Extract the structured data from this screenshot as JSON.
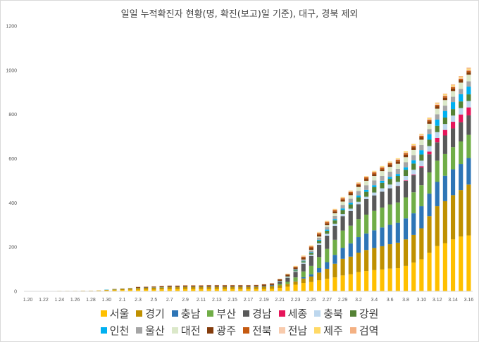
{
  "chart_data": {
    "type": "bar",
    "stacked": true,
    "title": "일일 누적확진자 현황(명, 확진(보고)일 기준), 대구, 경북 제외",
    "xlabel": "",
    "ylabel": "",
    "ylim": [
      0,
      1200
    ],
    "yticks": [
      "0",
      "200",
      "400",
      "600",
      "800",
      "1000",
      "1200"
    ],
    "gridlines": false,
    "legend_position": "bottom",
    "categories": [
      "1.20",
      "1.21",
      "1.22",
      "1.23",
      "1.24",
      "1.25",
      "1.26",
      "1.27",
      "1.28",
      "1.29",
      "1.30",
      "1.31",
      "2.1",
      "2.2",
      "2.3",
      "2.4",
      "2.5",
      "2.6",
      "2.7",
      "2.8",
      "2.9",
      "2.10",
      "2.11",
      "2.12",
      "2.13",
      "2.14",
      "2.15",
      "2.16",
      "2.17",
      "2.18",
      "2.19",
      "2.20",
      "2.21",
      "2.22",
      "2.23",
      "2.24",
      "2.25",
      "2.26",
      "2.27",
      "2.28",
      "2.29",
      "3.1",
      "3.2",
      "3.3",
      "3.4",
      "3.5",
      "3.6",
      "3.7",
      "3.8",
      "3.9",
      "3.10",
      "3.11",
      "3.12",
      "3.13",
      "3.14",
      "3.15",
      "3.16"
    ],
    "xticks_shown": [
      "1.20",
      "1.22",
      "1.24",
      "1.26",
      "1.28",
      "1.30",
      "2.1",
      "2.3",
      "2.5",
      "2.7",
      "2.9",
      "2.11",
      "2.13",
      "2.15",
      "2.17",
      "2.19",
      "2.21",
      "2.23",
      "2.25",
      "2.27",
      "2.29",
      "3.2",
      "3.4",
      "3.6",
      "3.8",
      "3.10",
      "3.12",
      "3.14",
      "3.16"
    ],
    "series": [
      {
        "name": "서울",
        "color": "#ffc000",
        "values": [
          0,
          0,
          0,
          0,
          1,
          1,
          1,
          2,
          2,
          3,
          4,
          5,
          6,
          7,
          8,
          8,
          8,
          9,
          10,
          10,
          10,
          10,
          10,
          10,
          10,
          10,
          10,
          10,
          10,
          10,
          10,
          11,
          16,
          21,
          30,
          38,
          42,
          50,
          57,
          63,
          72,
          77,
          87,
          92,
          96,
          99,
          103,
          105,
          115,
          130,
          145,
          175,
          205,
          218,
          235,
          248,
          253
        ]
      },
      {
        "name": "경기",
        "color": "#bf9000",
        "values": [
          1,
          1,
          1,
          1,
          1,
          1,
          1,
          1,
          1,
          1,
          3,
          4,
          5,
          6,
          7,
          8,
          9,
          9,
          9,
          9,
          10,
          10,
          10,
          10,
          10,
          10,
          10,
          10,
          10,
          10,
          11,
          11,
          11,
          12,
          15,
          20,
          25,
          35,
          45,
          62,
          75,
          80,
          88,
          95,
          100,
          105,
          110,
          115,
          120,
          125,
          140,
          165,
          180,
          190,
          200,
          210,
          230
        ]
      },
      {
        "name": "충남",
        "color": "#2e75b6",
        "values": [
          0,
          0,
          0,
          0,
          0,
          0,
          0,
          0,
          0,
          0,
          0,
          0,
          0,
          0,
          0,
          0,
          0,
          0,
          0,
          0,
          0,
          0,
          0,
          0,
          0,
          0,
          0,
          0,
          0,
          0,
          0,
          0,
          0,
          0,
          2,
          6,
          10,
          20,
          30,
          40,
          50,
          60,
          70,
          75,
          80,
          85,
          88,
          90,
          95,
          98,
          100,
          102,
          110,
          115,
          117,
          118,
          120
        ]
      },
      {
        "name": "부산",
        "color": "#70ad47",
        "values": [
          0,
          0,
          0,
          0,
          0,
          0,
          0,
          0,
          0,
          0,
          0,
          0,
          0,
          0,
          0,
          0,
          0,
          0,
          0,
          0,
          0,
          0,
          0,
          0,
          0,
          0,
          0,
          0,
          0,
          0,
          0,
          1,
          6,
          10,
          16,
          26,
          38,
          50,
          60,
          68,
          78,
          80,
          82,
          85,
          88,
          90,
          92,
          92,
          95,
          95,
          95,
          96,
          96,
          98,
          100,
          102,
          105
        ]
      },
      {
        "name": "경남",
        "color": "#595959",
        "values": [
          0,
          0,
          0,
          0,
          0,
          0,
          0,
          0,
          0,
          0,
          0,
          0,
          0,
          0,
          0,
          0,
          0,
          0,
          0,
          0,
          0,
          0,
          0,
          0,
          0,
          0,
          0,
          0,
          0,
          1,
          3,
          5,
          10,
          18,
          25,
          35,
          45,
          55,
          60,
          63,
          65,
          66,
          67,
          70,
          70,
          72,
          73,
          74,
          75,
          77,
          80,
          82,
          83,
          84,
          85,
          87,
          88
        ]
      },
      {
        "name": "세종",
        "color": "#e6155a",
        "values": [
          0,
          0,
          0,
          0,
          0,
          0,
          0,
          0,
          0,
          0,
          0,
          0,
          0,
          0,
          0,
          0,
          0,
          0,
          0,
          0,
          0,
          0,
          0,
          0,
          0,
          0,
          0,
          0,
          0,
          0,
          0,
          0,
          0,
          0,
          0,
          0,
          0,
          0,
          0,
          0,
          0,
          0,
          0,
          0,
          0,
          0,
          0,
          1,
          2,
          3,
          6,
          12,
          20,
          25,
          30,
          35,
          36
        ]
      },
      {
        "name": "충북",
        "color": "#bdd7ee",
        "values": [
          0,
          0,
          0,
          0,
          0,
          0,
          0,
          0,
          0,
          0,
          0,
          0,
          0,
          0,
          0,
          0,
          0,
          0,
          0,
          0,
          0,
          0,
          0,
          0,
          0,
          0,
          0,
          0,
          0,
          0,
          0,
          0,
          1,
          2,
          3,
          5,
          6,
          8,
          9,
          10,
          10,
          11,
          11,
          11,
          13,
          15,
          17,
          18,
          20,
          22,
          25,
          25,
          26,
          27,
          28,
          29,
          29
        ]
      },
      {
        "name": "강원",
        "color": "#548235",
        "values": [
          0,
          0,
          0,
          0,
          0,
          0,
          0,
          0,
          0,
          0,
          0,
          0,
          0,
          0,
          0,
          0,
          0,
          0,
          0,
          0,
          0,
          0,
          0,
          0,
          0,
          0,
          0,
          0,
          0,
          0,
          0,
          0,
          1,
          2,
          4,
          6,
          8,
          11,
          13,
          15,
          18,
          19,
          20,
          22,
          24,
          25,
          26,
          27,
          28,
          28,
          28,
          29,
          29,
          29,
          29,
          30,
          30
        ]
      },
      {
        "name": "인천",
        "color": "#00b0f0",
        "values": [
          0,
          0,
          0,
          0,
          0,
          0,
          0,
          0,
          0,
          0,
          1,
          1,
          1,
          1,
          1,
          1,
          1,
          1,
          1,
          1,
          1,
          1,
          1,
          1,
          1,
          1,
          1,
          1,
          1,
          1,
          1,
          1,
          1,
          1,
          2,
          2,
          3,
          4,
          5,
          6,
          7,
          8,
          9,
          9,
          9,
          9,
          9,
          9,
          11,
          15,
          20,
          25,
          28,
          30,
          32,
          33,
          35
        ]
      },
      {
        "name": "울산",
        "color": "#a5a5a5",
        "values": [
          0,
          0,
          0,
          0,
          0,
          0,
          0,
          0,
          0,
          0,
          0,
          0,
          0,
          0,
          0,
          0,
          0,
          0,
          0,
          0,
          0,
          0,
          0,
          0,
          0,
          0,
          0,
          0,
          0,
          0,
          0,
          0,
          1,
          2,
          3,
          5,
          8,
          10,
          12,
          14,
          16,
          18,
          20,
          21,
          22,
          22,
          23,
          23,
          23,
          23,
          23,
          23,
          24,
          24,
          24,
          24,
          24
        ]
      },
      {
        "name": "대전",
        "color": "#dbe8c9",
        "values": [
          0,
          0,
          0,
          0,
          0,
          0,
          0,
          0,
          0,
          0,
          0,
          0,
          0,
          0,
          0,
          0,
          0,
          0,
          0,
          0,
          0,
          0,
          0,
          0,
          0,
          0,
          0,
          0,
          0,
          0,
          0,
          0,
          0,
          0,
          0,
          1,
          3,
          5,
          8,
          12,
          15,
          16,
          18,
          20,
          20,
          22,
          22,
          23,
          23,
          24,
          24,
          24,
          25,
          25,
          26,
          28,
          30
        ]
      },
      {
        "name": "광주",
        "color": "#843c0c",
        "values": [
          0,
          0,
          0,
          0,
          0,
          0,
          0,
          0,
          0,
          0,
          0,
          0,
          0,
          0,
          3,
          3,
          3,
          4,
          5,
          5,
          5,
          5,
          5,
          6,
          6,
          6,
          6,
          6,
          6,
          6,
          6,
          6,
          7,
          8,
          8,
          8,
          9,
          9,
          9,
          9,
          9,
          9,
          9,
          9,
          9,
          9,
          10,
          11,
          11,
          11,
          11,
          11,
          11,
          11,
          11,
          11,
          11
        ]
      },
      {
        "name": "전북",
        "color": "#c55a11",
        "values": [
          0,
          0,
          0,
          0,
          0,
          0,
          0,
          0,
          0,
          0,
          0,
          1,
          1,
          1,
          1,
          1,
          1,
          1,
          1,
          1,
          1,
          1,
          1,
          1,
          1,
          1,
          1,
          1,
          1,
          1,
          1,
          1,
          1,
          1,
          3,
          5,
          6,
          6,
          6,
          6,
          6,
          6,
          6,
          7,
          7,
          7,
          7,
          7,
          7,
          7,
          7,
          7,
          7,
          7,
          7,
          7,
          7
        ]
      },
      {
        "name": "전남",
        "color": "#f8cbad",
        "values": [
          0,
          0,
          0,
          0,
          0,
          0,
          0,
          0,
          0,
          0,
          0,
          0,
          0,
          0,
          0,
          1,
          1,
          1,
          1,
          1,
          1,
          1,
          1,
          1,
          1,
          1,
          1,
          1,
          1,
          1,
          1,
          1,
          1,
          1,
          2,
          3,
          3,
          3,
          3,
          3,
          4,
          4,
          4,
          4,
          4,
          4,
          4,
          4,
          4,
          4,
          4,
          4,
          4,
          4,
          4,
          4,
          5
        ]
      },
      {
        "name": "제주",
        "color": "#ffd966",
        "values": [
          0,
          0,
          0,
          0,
          0,
          0,
          0,
          0,
          0,
          0,
          0,
          0,
          0,
          0,
          0,
          0,
          0,
          0,
          0,
          0,
          0,
          0,
          0,
          0,
          0,
          0,
          0,
          0,
          0,
          0,
          0,
          0,
          1,
          2,
          2,
          2,
          2,
          2,
          2,
          2,
          2,
          2,
          2,
          2,
          3,
          3,
          3,
          3,
          4,
          4,
          4,
          4,
          4,
          4,
          4,
          4,
          4
        ]
      },
      {
        "name": "검역",
        "color": "#f4b183",
        "values": [
          0,
          0,
          0,
          0,
          0,
          0,
          0,
          0,
          0,
          0,
          0,
          0,
          0,
          0,
          0,
          0,
          0,
          0,
          0,
          0,
          0,
          0,
          0,
          0,
          0,
          0,
          0,
          0,
          0,
          0,
          0,
          0,
          0,
          0,
          0,
          0,
          0,
          0,
          0,
          0,
          0,
          0,
          0,
          0,
          0,
          0,
          0,
          0,
          0,
          1,
          1,
          2,
          2,
          3,
          4,
          4,
          5
        ]
      }
    ],
    "legend_rows": [
      [
        0,
        1,
        2,
        3,
        4,
        5,
        6,
        7
      ],
      [
        8,
        9,
        10,
        11,
        12,
        13,
        14,
        15
      ]
    ]
  }
}
